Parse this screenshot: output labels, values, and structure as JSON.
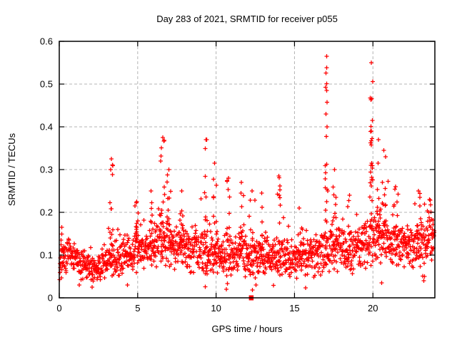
{
  "chart_data": {
    "type": "scatter",
    "title": "Day 283 of 2021, SRMTID for receiver p055",
    "xlabel": "GPS time / hours",
    "ylabel": "SRMTID / TECUs",
    "xlim": [
      0,
      23.95
    ],
    "ylim": [
      0,
      0.6
    ],
    "xticks": [
      0,
      5,
      10,
      15,
      20
    ],
    "xtick_labels": [
      "0",
      "5",
      "10",
      "15",
      "20"
    ],
    "yticks": [
      0,
      0.1,
      0.2,
      0.3,
      0.4,
      0.5,
      0.6
    ],
    "ytick_labels": [
      "0",
      "0.1",
      "0.2",
      "0.3",
      "0.4",
      "0.5",
      "0.6"
    ],
    "grid": true,
    "legend_position": "none",
    "marker": "plus",
    "colors": {
      "points": "#ff0000",
      "event_marker": "#ff0000",
      "grid": "#b4b4b4",
      "axis": "#000000",
      "background": "#ffffff",
      "text": "#000000"
    },
    "event_marker": {
      "x": 12.23,
      "y": 0,
      "marker": "filled-square"
    },
    "series_name": "SRMTID",
    "scatter_spec": {
      "comment_baseline": "control points [hour, band_mean_TECU, band_halfspread_TECU] of the dense noise band",
      "baseline": [
        [
          0.0,
          0.085,
          0.04
        ],
        [
          0.7,
          0.105,
          0.045
        ],
        [
          1.3,
          0.082,
          0.034
        ],
        [
          1.9,
          0.07,
          0.03
        ],
        [
          2.6,
          0.068,
          0.03
        ],
        [
          3.2,
          0.088,
          0.042
        ],
        [
          4.0,
          0.095,
          0.048
        ],
        [
          4.8,
          0.118,
          0.05
        ],
        [
          5.6,
          0.112,
          0.05
        ],
        [
          6.4,
          0.128,
          0.055
        ],
        [
          7.2,
          0.128,
          0.052
        ],
        [
          8.0,
          0.115,
          0.05
        ],
        [
          8.8,
          0.12,
          0.053
        ],
        [
          9.6,
          0.103,
          0.05
        ],
        [
          10.4,
          0.095,
          0.048
        ],
        [
          11.2,
          0.105,
          0.05
        ],
        [
          12.0,
          0.1,
          0.05
        ],
        [
          12.8,
          0.095,
          0.045
        ],
        [
          13.6,
          0.1,
          0.046
        ],
        [
          14.4,
          0.095,
          0.044
        ],
        [
          15.2,
          0.09,
          0.04
        ],
        [
          16.0,
          0.1,
          0.044
        ],
        [
          16.8,
          0.115,
          0.055
        ],
        [
          17.6,
          0.12,
          0.054
        ],
        [
          18.4,
          0.11,
          0.05
        ],
        [
          19.2,
          0.115,
          0.05
        ],
        [
          20.0,
          0.14,
          0.06
        ],
        [
          20.8,
          0.145,
          0.058
        ],
        [
          21.6,
          0.12,
          0.054
        ],
        [
          22.4,
          0.125,
          0.05
        ],
        [
          23.2,
          0.13,
          0.05
        ],
        [
          23.92,
          0.148,
          0.055
        ]
      ],
      "comment_spikes": "TID events: vertical point columns [hour_center, half_width_h, peak_TECU, n_points]",
      "spikes": [
        [
          0.15,
          0.08,
          0.165,
          5
        ],
        [
          3.32,
          0.1,
          0.325,
          14
        ],
        [
          4.95,
          0.15,
          0.225,
          9
        ],
        [
          5.85,
          0.12,
          0.25,
          8
        ],
        [
          6.6,
          0.15,
          0.375,
          16
        ],
        [
          7.0,
          0.12,
          0.3,
          10
        ],
        [
          7.8,
          0.15,
          0.25,
          8
        ],
        [
          9.35,
          0.1,
          0.37,
          13
        ],
        [
          9.9,
          0.12,
          0.315,
          10
        ],
        [
          10.8,
          0.15,
          0.28,
          10
        ],
        [
          11.6,
          0.15,
          0.27,
          9
        ],
        [
          12.3,
          0.2,
          0.25,
          8
        ],
        [
          12.9,
          0.15,
          0.245,
          8
        ],
        [
          14.0,
          0.12,
          0.285,
          10
        ],
        [
          15.3,
          0.2,
          0.21,
          6
        ],
        [
          17.05,
          0.09,
          0.565,
          22
        ],
        [
          17.55,
          0.15,
          0.3,
          10
        ],
        [
          18.5,
          0.12,
          0.24,
          7
        ],
        [
          19.9,
          0.1,
          0.55,
          26
        ],
        [
          20.35,
          0.12,
          0.37,
          12
        ],
        [
          20.7,
          0.12,
          0.345,
          10
        ],
        [
          21.45,
          0.15,
          0.26,
          8
        ],
        [
          22.9,
          0.2,
          0.25,
          10
        ],
        [
          23.6,
          0.15,
          0.23,
          8
        ]
      ],
      "low_outliers": [
        [
          2.1,
          0.025
        ],
        [
          4.35,
          0.03
        ],
        [
          9.3,
          0.026
        ],
        [
          10.65,
          0.02
        ],
        [
          12.55,
          0.03
        ],
        [
          20.55,
          0.035
        ],
        [
          23.25,
          0.04
        ],
        [
          23.3,
          0.05
        ]
      ],
      "seed": 7,
      "points_per_hour": 68,
      "t_start": 0.02,
      "t_end": 23.92
    }
  }
}
